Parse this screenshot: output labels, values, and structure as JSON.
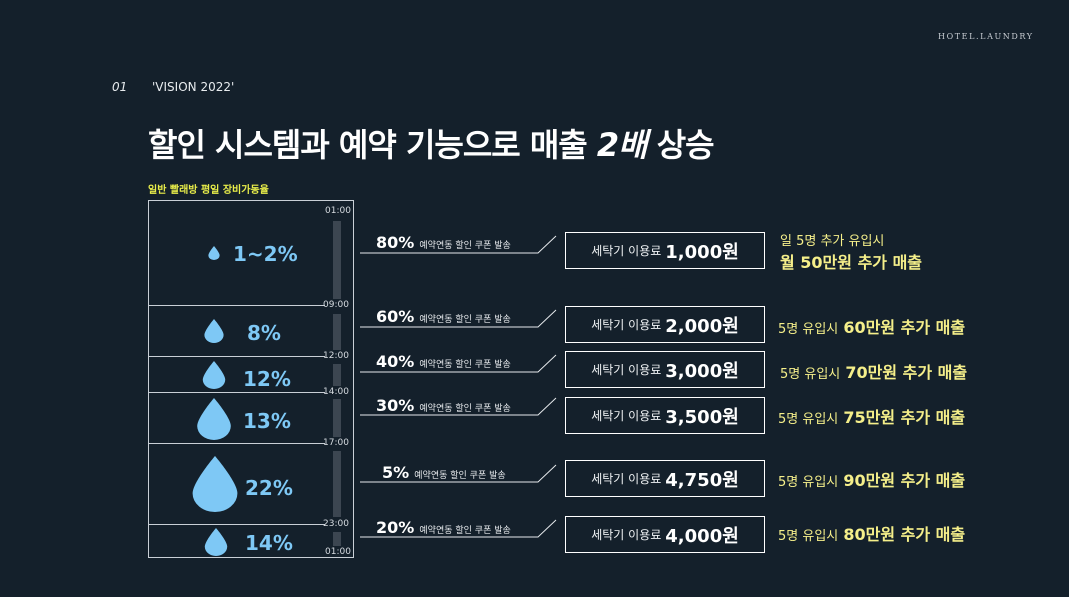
{
  "brand": "HOTEL.LAUNDRY",
  "section": {
    "number": "01",
    "title": "'VISION 2022'"
  },
  "headline": {
    "part1": "할인 시스템과 예약 기능으로 매출 ",
    "highlight": "2배",
    "part2": " 상승"
  },
  "chart": {
    "label": "일반 빨래방 평일 장비가동율",
    "times": [
      "01:00",
      "09:00",
      "12:00",
      "14:00",
      "17:00",
      "23:00",
      "01:00"
    ],
    "segments": [
      {
        "percent": "1~2%"
      },
      {
        "percent": "8%"
      },
      {
        "percent": "12%"
      },
      {
        "percent": "13%"
      },
      {
        "percent": "22%"
      },
      {
        "percent": "14%"
      }
    ]
  },
  "rows": [
    {
      "discount": "80%",
      "coupon": "예약연동 할인 쿠폰 발송",
      "fee_label": "세탁기 이용료",
      "fee": "1,000원",
      "result_line1": "일 5명 추가 유입시",
      "result_line2": "월 50만원 추가 매출"
    },
    {
      "discount": "60%",
      "coupon": "예약연동 할인 쿠폰 발송",
      "fee_label": "세탁기 이용료",
      "fee": "2,000원",
      "result_prefix": "5명 유입시",
      "result_bold": "60만원 추가 매출"
    },
    {
      "discount": "40%",
      "coupon": "예약연동 할인 쿠폰 발송",
      "fee_label": "세탁기 이용료",
      "fee": "3,000원",
      "result_prefix": "5명 유입시",
      "result_bold": "70만원 추가 매출"
    },
    {
      "discount": "30%",
      "coupon": "예약연동 할인 쿠폰 발송",
      "fee_label": "세탁기 이용료",
      "fee": "3,500원",
      "result_prefix": "5명 유입시",
      "result_bold": "75만원 추가 매출"
    },
    {
      "discount": "5%",
      "coupon": "예약연동 할인 쿠폰 발송",
      "fee_label": "세탁기 이용료",
      "fee": "4,750원",
      "result_prefix": "5명 유입시",
      "result_bold": "90만원 추가 매출"
    },
    {
      "discount": "20%",
      "coupon": "예약연동 할인 쿠폰 발송",
      "fee_label": "세탁기 이용료",
      "fee": "4,000원",
      "result_prefix": "5명 유입시",
      "result_bold": "80만원 추가 매출"
    }
  ],
  "colors": {
    "background": "#14202b",
    "drop": "#7ec8f5",
    "highlight": "#f5ef8a",
    "chart_label": "#e9ee4a"
  }
}
